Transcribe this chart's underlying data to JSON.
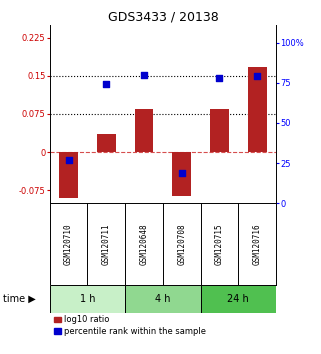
{
  "title": "GDS3433 / 20138",
  "samples": [
    "GSM120710",
    "GSM120711",
    "GSM120648",
    "GSM120708",
    "GSM120715",
    "GSM120716"
  ],
  "log10_ratio": [
    -0.09,
    0.035,
    0.085,
    -0.085,
    0.085,
    0.168
  ],
  "percentile_rank": [
    0.27,
    0.74,
    0.8,
    0.19,
    0.78,
    0.79
  ],
  "time_groups": [
    {
      "label": "1 h",
      "indices": [
        0,
        1
      ],
      "color": "#c8f0c8"
    },
    {
      "label": "4 h",
      "indices": [
        2,
        3
      ],
      "color": "#90d890"
    },
    {
      "label": "24 h",
      "indices": [
        4,
        5
      ],
      "color": "#50c050"
    }
  ],
  "ylim_left": [
    -0.1,
    0.25
  ],
  "ylim_right": [
    0,
    1.111
  ],
  "yticks_left": [
    -0.075,
    0,
    0.075,
    0.15,
    0.225
  ],
  "yticks_right": [
    0,
    0.25,
    0.5,
    0.75,
    1.0
  ],
  "ytick_labels_left": [
    "-0.075",
    "0",
    "0.075",
    "0.15",
    "0.225"
  ],
  "ytick_labels_right": [
    "0",
    "25",
    "50",
    "75",
    "100%"
  ],
  "hlines_dotted": [
    0.075,
    0.15
  ],
  "hline_dashed": 0,
  "bar_color": "#b22222",
  "dot_color": "#0000cd",
  "bar_width": 0.5,
  "dot_size": 18,
  "xlabel_time": "time",
  "legend_log10": "log10 ratio",
  "legend_pct": "percentile rank within the sample",
  "title_fontsize": 9,
  "tick_fontsize": 6,
  "label_fontsize": 7,
  "sample_fontsize": 5.5
}
